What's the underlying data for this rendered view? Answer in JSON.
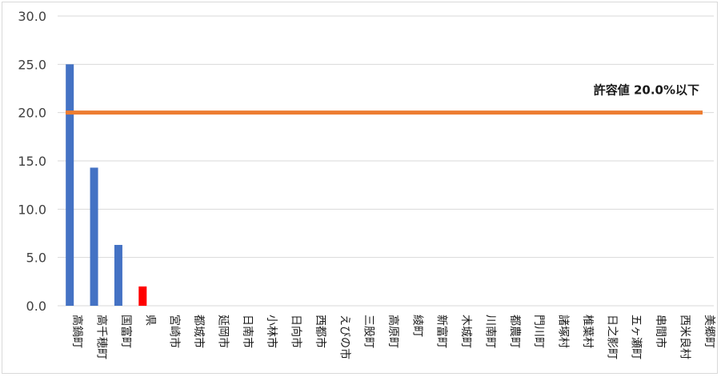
{
  "chart_data": {
    "type": "bar",
    "title": "",
    "xlabel": "",
    "ylabel": "",
    "ylim": [
      0,
      30
    ],
    "yticks": [
      "0.0",
      "5.0",
      "10.0",
      "15.0",
      "20.0",
      "25.0",
      "30.0"
    ],
    "grid": true,
    "categories": [
      "高鍋町",
      "高千穂町",
      "国富町",
      "県",
      "宮崎市",
      "都城市",
      "延岡市",
      "日南市",
      "小林市",
      "日向市",
      "西都市",
      "えびの市",
      "三股町",
      "高原町",
      "綾町",
      "新富町",
      "木城町",
      "川南町",
      "都農町",
      "門川町",
      "諸塚村",
      "椎葉村",
      "日之影町",
      "五ヶ瀬町",
      "串間市",
      "西米良村",
      "美郷町"
    ],
    "values": [
      25.0,
      14.3,
      6.3,
      2.0,
      0,
      0,
      0,
      0,
      0,
      0,
      0,
      0,
      0,
      0,
      0,
      0,
      0,
      0,
      0,
      0,
      0,
      0,
      0,
      0,
      0,
      0,
      0
    ],
    "bar_colors": [
      "#4472c4",
      "#4472c4",
      "#4472c4",
      "#ff0000"
    ],
    "reference_line": {
      "value": 20.0,
      "label": "許容値 20.0%以下",
      "color": "#ed7d31"
    }
  }
}
